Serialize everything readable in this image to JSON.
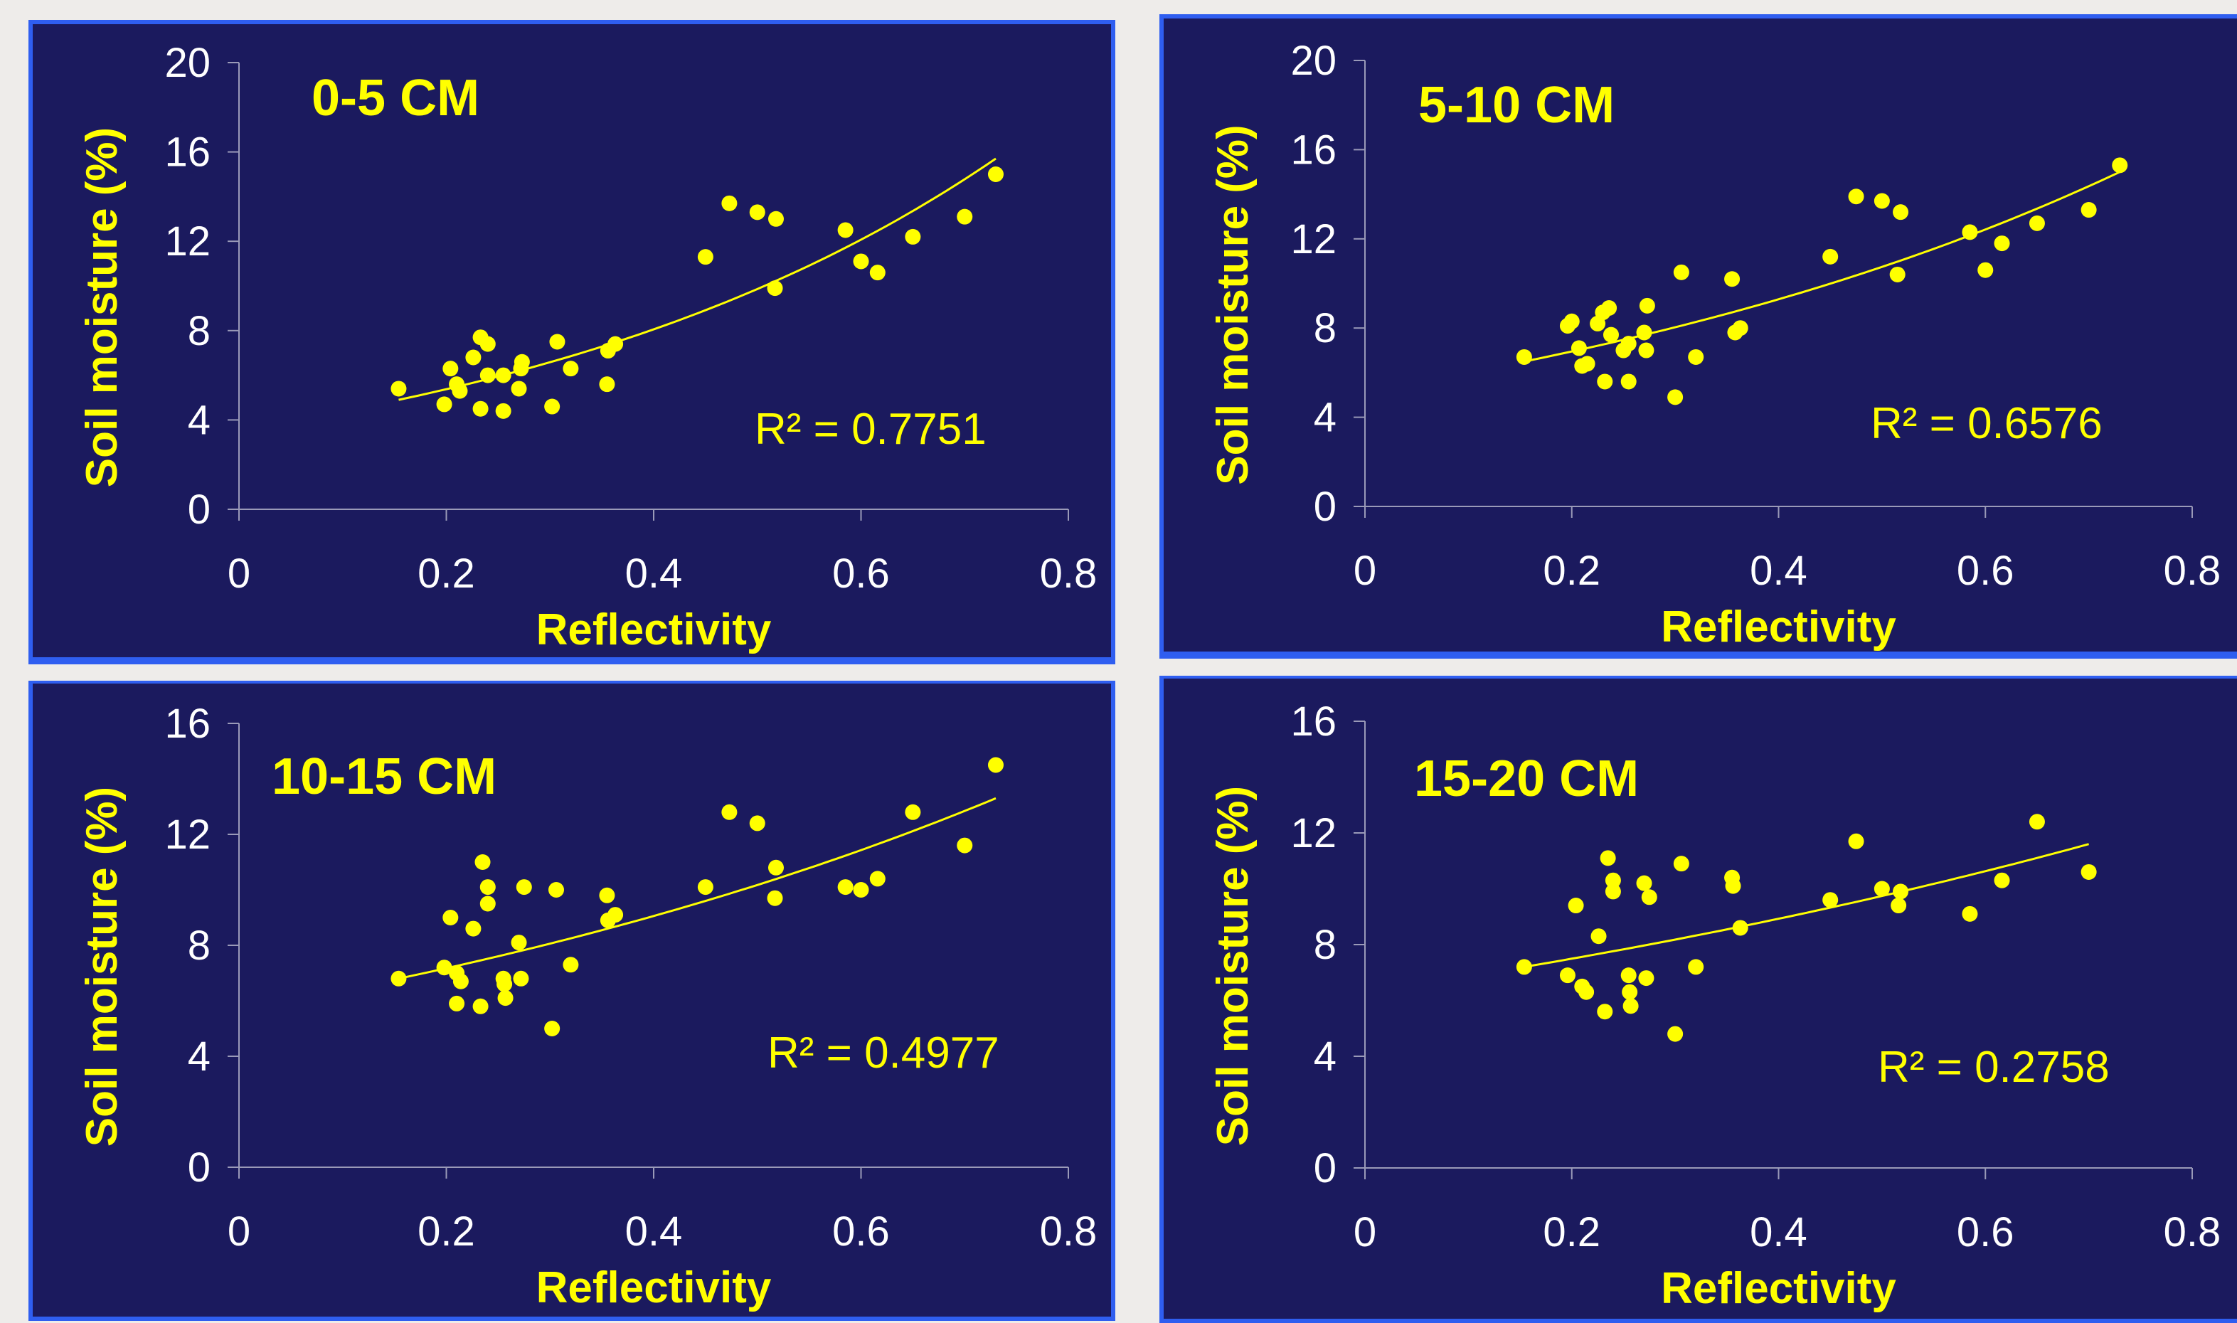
{
  "chart_data": [
    {
      "type": "scatter",
      "title": "0-5 CM",
      "xlabel": "Reflectivity",
      "ylabel": "Soil moisture (%)",
      "xlim": [
        0,
        0.8
      ],
      "ylim": [
        0,
        20
      ],
      "xticks": [
        "0",
        "0.2",
        "0.4",
        "0.6",
        "0.8"
      ],
      "yticks": [
        "0",
        "4",
        "8",
        "12",
        "16",
        "20"
      ],
      "xtick_values": [
        0,
        0.2,
        0.4,
        0.6,
        0.8
      ],
      "ytick_values": [
        0,
        4,
        8,
        12,
        16,
        20
      ],
      "r2_text": "R² = 0.7751",
      "trendline": {
        "type": "exponential",
        "x_range": [
          0.154,
          0.73
        ],
        "y_at_start": 4.9,
        "y_at_end": 15.7
      },
      "points": [
        [
          0.154,
          5.4
        ],
        [
          0.198,
          4.7
        ],
        [
          0.204,
          6.3
        ],
        [
          0.21,
          5.6
        ],
        [
          0.213,
          5.3
        ],
        [
          0.226,
          6.8
        ],
        [
          0.233,
          4.5
        ],
        [
          0.233,
          7.7
        ],
        [
          0.24,
          7.4
        ],
        [
          0.24,
          6.0
        ],
        [
          0.255,
          4.4
        ],
        [
          0.255,
          6.0
        ],
        [
          0.27,
          5.4
        ],
        [
          0.272,
          6.3
        ],
        [
          0.273,
          6.6
        ],
        [
          0.302,
          4.6
        ],
        [
          0.307,
          7.5
        ],
        [
          0.32,
          6.3
        ],
        [
          0.355,
          5.6
        ],
        [
          0.356,
          7.1
        ],
        [
          0.363,
          7.4
        ],
        [
          0.45,
          11.3
        ],
        [
          0.473,
          13.7
        ],
        [
          0.5,
          13.3
        ],
        [
          0.517,
          9.9
        ],
        [
          0.518,
          13.0
        ],
        [
          0.585,
          12.5
        ],
        [
          0.6,
          11.1
        ],
        [
          0.616,
          10.6
        ],
        [
          0.65,
          12.2
        ],
        [
          0.7,
          13.1
        ],
        [
          0.73,
          15.0
        ]
      ]
    },
    {
      "type": "scatter",
      "title": "5-10 CM",
      "xlabel": "Reflectivity",
      "ylabel": "Soil moisture (%)",
      "xlim": [
        0,
        0.8
      ],
      "ylim": [
        0,
        20
      ],
      "xticks": [
        "0",
        "0.2",
        "0.4",
        "0.6",
        "0.8"
      ],
      "yticks": [
        "0",
        "4",
        "8",
        "12",
        "16",
        "20"
      ],
      "xtick_values": [
        0,
        0.2,
        0.4,
        0.6,
        0.8
      ],
      "ytick_values": [
        0,
        4,
        8,
        12,
        16,
        20
      ],
      "r2_text": "R² = 0.6576",
      "trendline": {
        "type": "exponential",
        "x_range": [
          0.154,
          0.73
        ],
        "y_at_start": 6.5,
        "y_at_end": 15.0
      },
      "points": [
        [
          0.154,
          6.7
        ],
        [
          0.196,
          8.1
        ],
        [
          0.2,
          8.3
        ],
        [
          0.207,
          7.1
        ],
        [
          0.21,
          6.3
        ],
        [
          0.215,
          6.4
        ],
        [
          0.225,
          8.2
        ],
        [
          0.23,
          8.7
        ],
        [
          0.232,
          5.6
        ],
        [
          0.236,
          8.9
        ],
        [
          0.238,
          7.7
        ],
        [
          0.25,
          7.0
        ],
        [
          0.255,
          7.3
        ],
        [
          0.255,
          5.6
        ],
        [
          0.27,
          7.8
        ],
        [
          0.272,
          7.0
        ],
        [
          0.273,
          9.0
        ],
        [
          0.3,
          4.9
        ],
        [
          0.306,
          10.5
        ],
        [
          0.32,
          6.7
        ],
        [
          0.355,
          10.2
        ],
        [
          0.358,
          7.8
        ],
        [
          0.363,
          8.0
        ],
        [
          0.45,
          11.2
        ],
        [
          0.475,
          13.9
        ],
        [
          0.5,
          13.7
        ],
        [
          0.515,
          10.4
        ],
        [
          0.518,
          13.2
        ],
        [
          0.585,
          12.3
        ],
        [
          0.6,
          10.6
        ],
        [
          0.616,
          11.8
        ],
        [
          0.65,
          12.7
        ],
        [
          0.7,
          13.3
        ],
        [
          0.73,
          15.3
        ]
      ]
    },
    {
      "type": "scatter",
      "title": "10-15 CM",
      "xlabel": "Reflectivity",
      "ylabel": "Soil moisture (%)",
      "xlim": [
        0,
        0.8
      ],
      "ylim": [
        0,
        16
      ],
      "xticks": [
        "0",
        "0.2",
        "0.4",
        "0.6",
        "0.8"
      ],
      "yticks": [
        "0",
        "4",
        "8",
        "12",
        "16"
      ],
      "xtick_values": [
        0,
        0.2,
        0.4,
        0.6,
        0.8
      ],
      "ytick_values": [
        0,
        4,
        8,
        12,
        16
      ],
      "r2_text": "R² = 0.4977",
      "trendline": {
        "type": "exponential",
        "x_range": [
          0.154,
          0.73
        ],
        "y_at_start": 6.8,
        "y_at_end": 13.3
      },
      "points": [
        [
          0.154,
          6.8
        ],
        [
          0.198,
          7.2
        ],
        [
          0.204,
          9.0
        ],
        [
          0.21,
          7.0
        ],
        [
          0.21,
          5.9
        ],
        [
          0.214,
          6.7
        ],
        [
          0.226,
          8.6
        ],
        [
          0.233,
          5.8
        ],
        [
          0.235,
          11.0
        ],
        [
          0.24,
          10.1
        ],
        [
          0.24,
          9.5
        ],
        [
          0.255,
          6.8
        ],
        [
          0.256,
          6.6
        ],
        [
          0.257,
          6.1
        ],
        [
          0.27,
          8.1
        ],
        [
          0.272,
          6.8
        ],
        [
          0.275,
          10.1
        ],
        [
          0.302,
          5.0
        ],
        [
          0.306,
          10.0
        ],
        [
          0.32,
          7.3
        ],
        [
          0.355,
          9.8
        ],
        [
          0.356,
          8.9
        ],
        [
          0.363,
          9.1
        ],
        [
          0.45,
          10.1
        ],
        [
          0.473,
          12.8
        ],
        [
          0.5,
          12.4
        ],
        [
          0.517,
          9.7
        ],
        [
          0.518,
          10.8
        ],
        [
          0.585,
          10.1
        ],
        [
          0.6,
          10.0
        ],
        [
          0.616,
          10.4
        ],
        [
          0.65,
          12.8
        ],
        [
          0.7,
          11.6
        ],
        [
          0.73,
          14.5
        ]
      ]
    },
    {
      "type": "scatter",
      "title": "15-20 CM",
      "xlabel": "Reflectivity",
      "ylabel": "Soil moisture (%)",
      "xlim": [
        0,
        0.8
      ],
      "ylim": [
        0,
        16
      ],
      "xticks": [
        "0",
        "0.2",
        "0.4",
        "0.6",
        "0.8"
      ],
      "yticks": [
        "0",
        "4",
        "8",
        "12",
        "16"
      ],
      "xtick_values": [
        0,
        0.2,
        0.4,
        0.6,
        0.8
      ],
      "ytick_values": [
        0,
        4,
        8,
        12,
        16
      ],
      "r2_text": "R² = 0.2758",
      "trendline": {
        "type": "exponential",
        "x_range": [
          0.154,
          0.7
        ],
        "y_at_start": 7.2,
        "y_at_end": 11.6
      },
      "points": [
        [
          0.154,
          7.2
        ],
        [
          0.196,
          6.9
        ],
        [
          0.204,
          9.4
        ],
        [
          0.21,
          6.5
        ],
        [
          0.214,
          6.3
        ],
        [
          0.226,
          8.3
        ],
        [
          0.232,
          5.6
        ],
        [
          0.235,
          11.1
        ],
        [
          0.24,
          10.3
        ],
        [
          0.24,
          9.9
        ],
        [
          0.255,
          6.9
        ],
        [
          0.256,
          6.3
        ],
        [
          0.257,
          5.8
        ],
        [
          0.27,
          10.2
        ],
        [
          0.272,
          6.8
        ],
        [
          0.275,
          9.7
        ],
        [
          0.3,
          4.8
        ],
        [
          0.306,
          10.9
        ],
        [
          0.32,
          7.2
        ],
        [
          0.355,
          10.4
        ],
        [
          0.356,
          10.1
        ],
        [
          0.363,
          8.6
        ],
        [
          0.45,
          9.6
        ],
        [
          0.475,
          11.7
        ],
        [
          0.5,
          10.0
        ],
        [
          0.516,
          9.4
        ],
        [
          0.518,
          9.9
        ],
        [
          0.585,
          9.1
        ],
        [
          0.616,
          10.3
        ],
        [
          0.65,
          12.4
        ],
        [
          0.7,
          10.6
        ]
      ]
    }
  ]
}
